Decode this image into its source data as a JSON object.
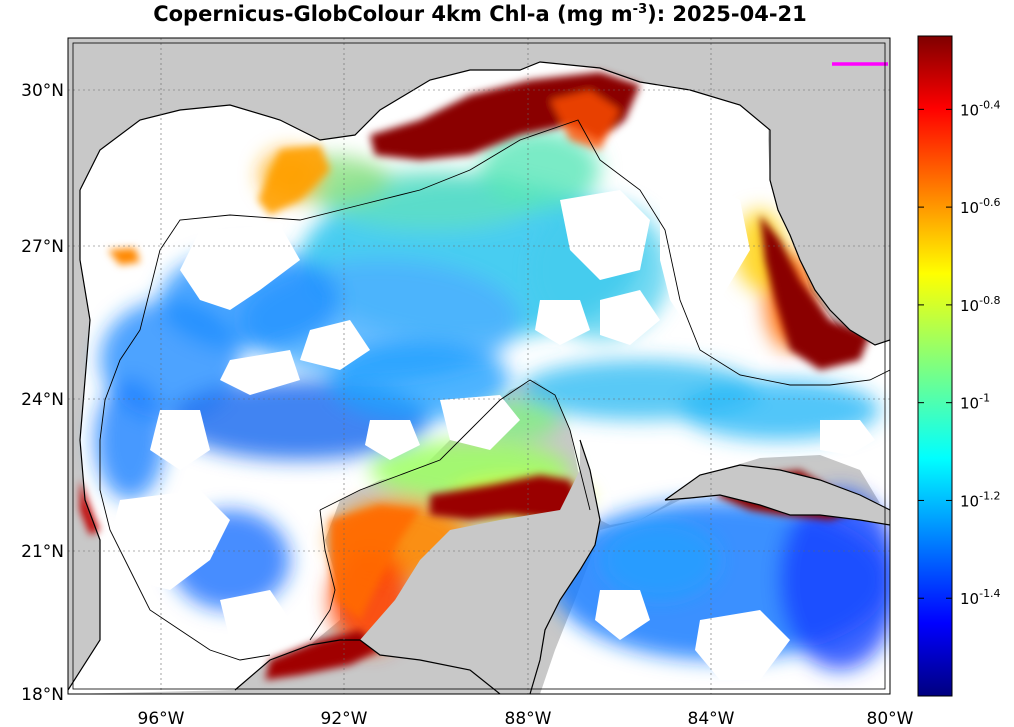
{
  "title": {
    "main": "Copernicus-GlobColour 4km Chl-a (mg m",
    "exponent": "-3",
    "date_text": "): 2025-04-21"
  },
  "axes": {
    "x_ticks": [
      "96°W",
      "92°W",
      "88°W",
      "84°W",
      "80°W"
    ],
    "y_ticks": [
      "30°N",
      "27°N",
      "24°N",
      "21°N",
      "18°N"
    ],
    "lon_range": [
      -98,
      -80
    ],
    "lat_range": [
      18,
      31
    ]
  },
  "colorbar": {
    "scale": "log10",
    "range_log10": [
      -1.6,
      -0.25
    ],
    "tick_values_log10": [
      -0.4,
      -0.6,
      -0.8,
      -1,
      -1.2,
      -1.4
    ],
    "tick_labels": [
      {
        "base": "10",
        "exp": "-0.4"
      },
      {
        "base": "10",
        "exp": "-0.6"
      },
      {
        "base": "10",
        "exp": "-0.8"
      },
      {
        "base": "10",
        "exp": "-1"
      },
      {
        "base": "10",
        "exp": "-1.2"
      },
      {
        "base": "10",
        "exp": "-1.4"
      }
    ],
    "colormap": "jet"
  },
  "colors": {
    "land": "#c8c8c8",
    "no_data": "#ffffff",
    "coastline": "#000000",
    "contour": "#000000",
    "marker": "#ff00ff"
  }
}
